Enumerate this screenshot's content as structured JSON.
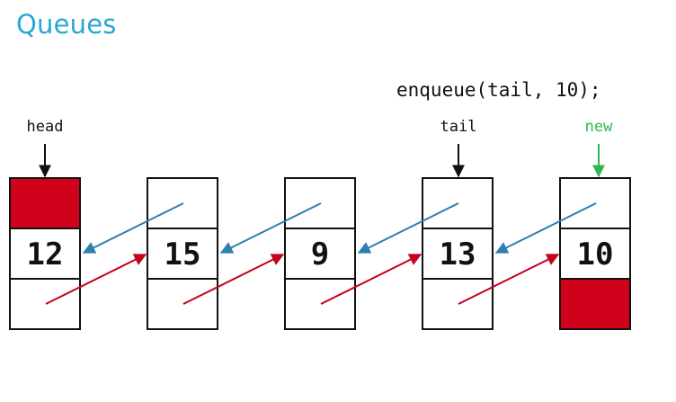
{
  "title": "Queues",
  "code_line": "enqueue(tail, 10);",
  "pointer_labels": {
    "head": "head",
    "tail": "tail",
    "new": "new"
  },
  "nodes": [
    {
      "value": "12",
      "prev_null": true,
      "next_null": false
    },
    {
      "value": "15",
      "prev_null": false,
      "next_null": false
    },
    {
      "value": "9",
      "prev_null": false,
      "next_null": false
    },
    {
      "value": "13",
      "prev_null": false,
      "next_null": false
    },
    {
      "value": "10",
      "prev_null": false,
      "next_null": true
    }
  ],
  "colors": {
    "title": "#2aa6d3",
    "null_fill": "#d0021b",
    "prev_arrow": "#2e7fb0",
    "next_arrow": "#c4001c",
    "new_label": "#2eb84f",
    "outline": "#111111"
  }
}
